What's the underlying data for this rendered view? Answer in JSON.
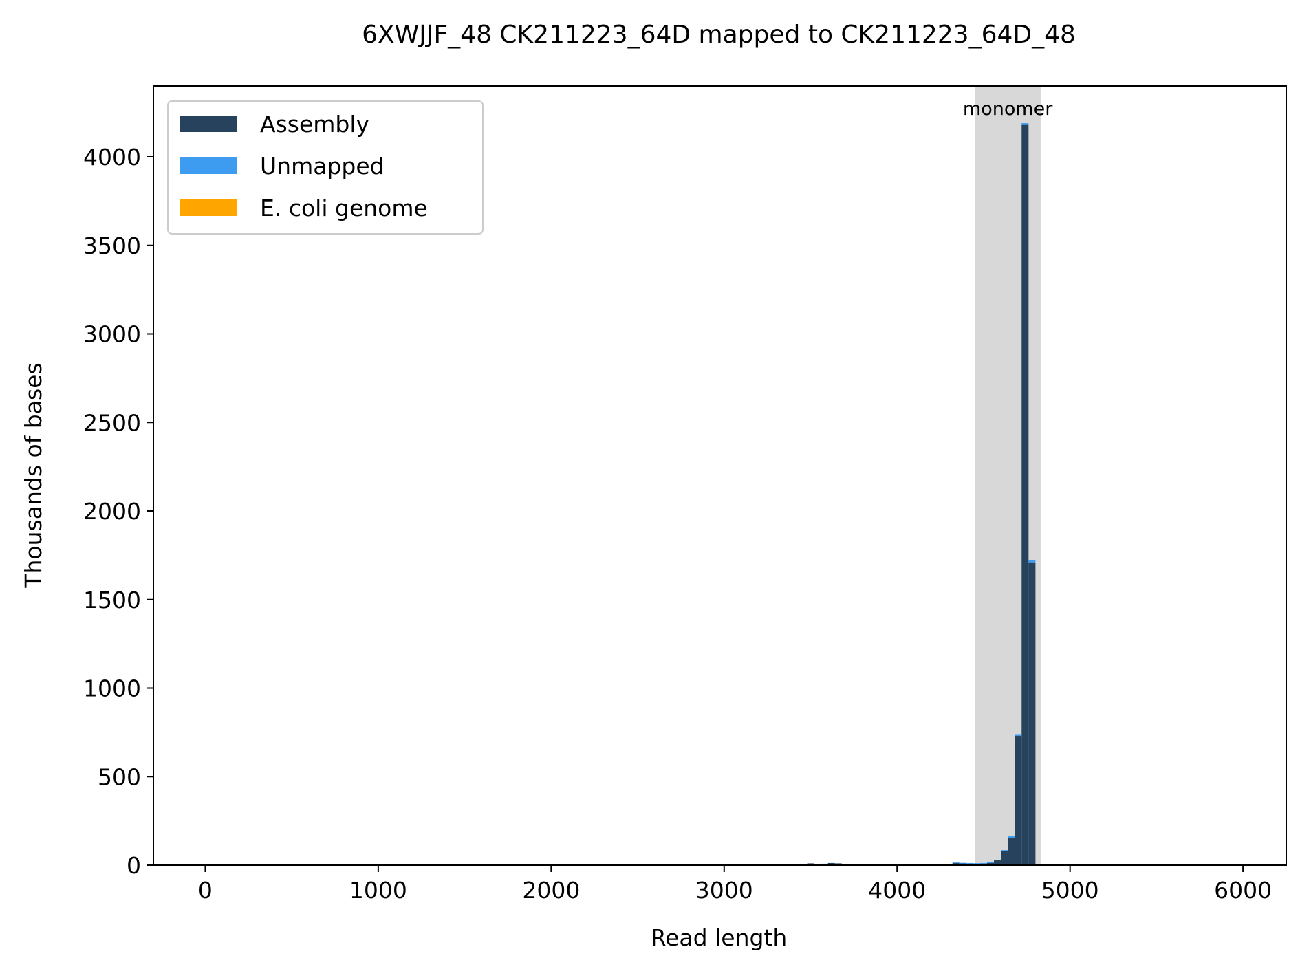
{
  "chart_data": {
    "type": "bar",
    "title": "6XWJJF_48 CK211223_64D mapped to CK211223_64D_48",
    "xlabel": "Read length",
    "ylabel": "Thousands of bases",
    "xlim": [
      -300,
      6250
    ],
    "ylim": [
      0,
      4400
    ],
    "xticks": [
      0,
      1000,
      2000,
      3000,
      4000,
      5000,
      6000
    ],
    "yticks": [
      0,
      500,
      1000,
      1500,
      2000,
      2500,
      3000,
      3500,
      4000
    ],
    "grid": false,
    "legend_position": "top-left",
    "bin_width": 40,
    "annotation": {
      "label": "monomer",
      "x_range": [
        4450,
        4830
      ]
    },
    "series": [
      {
        "name": "Assembly",
        "color": "#27425d",
        "x": [
          1800,
          2280,
          2520,
          2760,
          3080,
          3440,
          3480,
          3560,
          3600,
          3640,
          3800,
          3840,
          4080,
          4120,
          4160,
          4200,
          4240,
          4320,
          4360,
          4400,
          4440,
          4480,
          4520,
          4560,
          4600,
          4640,
          4680,
          4720,
          4760
        ],
        "values": [
          5,
          6,
          5,
          4,
          4,
          6,
          10,
          8,
          12,
          10,
          5,
          6,
          5,
          7,
          6,
          6,
          7,
          12,
          10,
          9,
          8,
          10,
          14,
          28,
          80,
          155,
          730,
          4180,
          1710
        ]
      },
      {
        "name": "Unmapped",
        "color": "#3d9cf0",
        "x": [
          4320,
          4360,
          4400,
          4440,
          4480,
          4520,
          4560,
          4600,
          4640,
          4680,
          4720,
          4760
        ],
        "values": [
          3,
          3,
          3,
          3,
          2,
          2,
          3,
          5,
          8,
          6,
          10,
          12
        ]
      },
      {
        "name": "E. coli genome",
        "color": "#ffa500",
        "x": [
          2160,
          2760,
          3080
        ],
        "values": [
          3,
          3,
          2
        ]
      }
    ]
  }
}
